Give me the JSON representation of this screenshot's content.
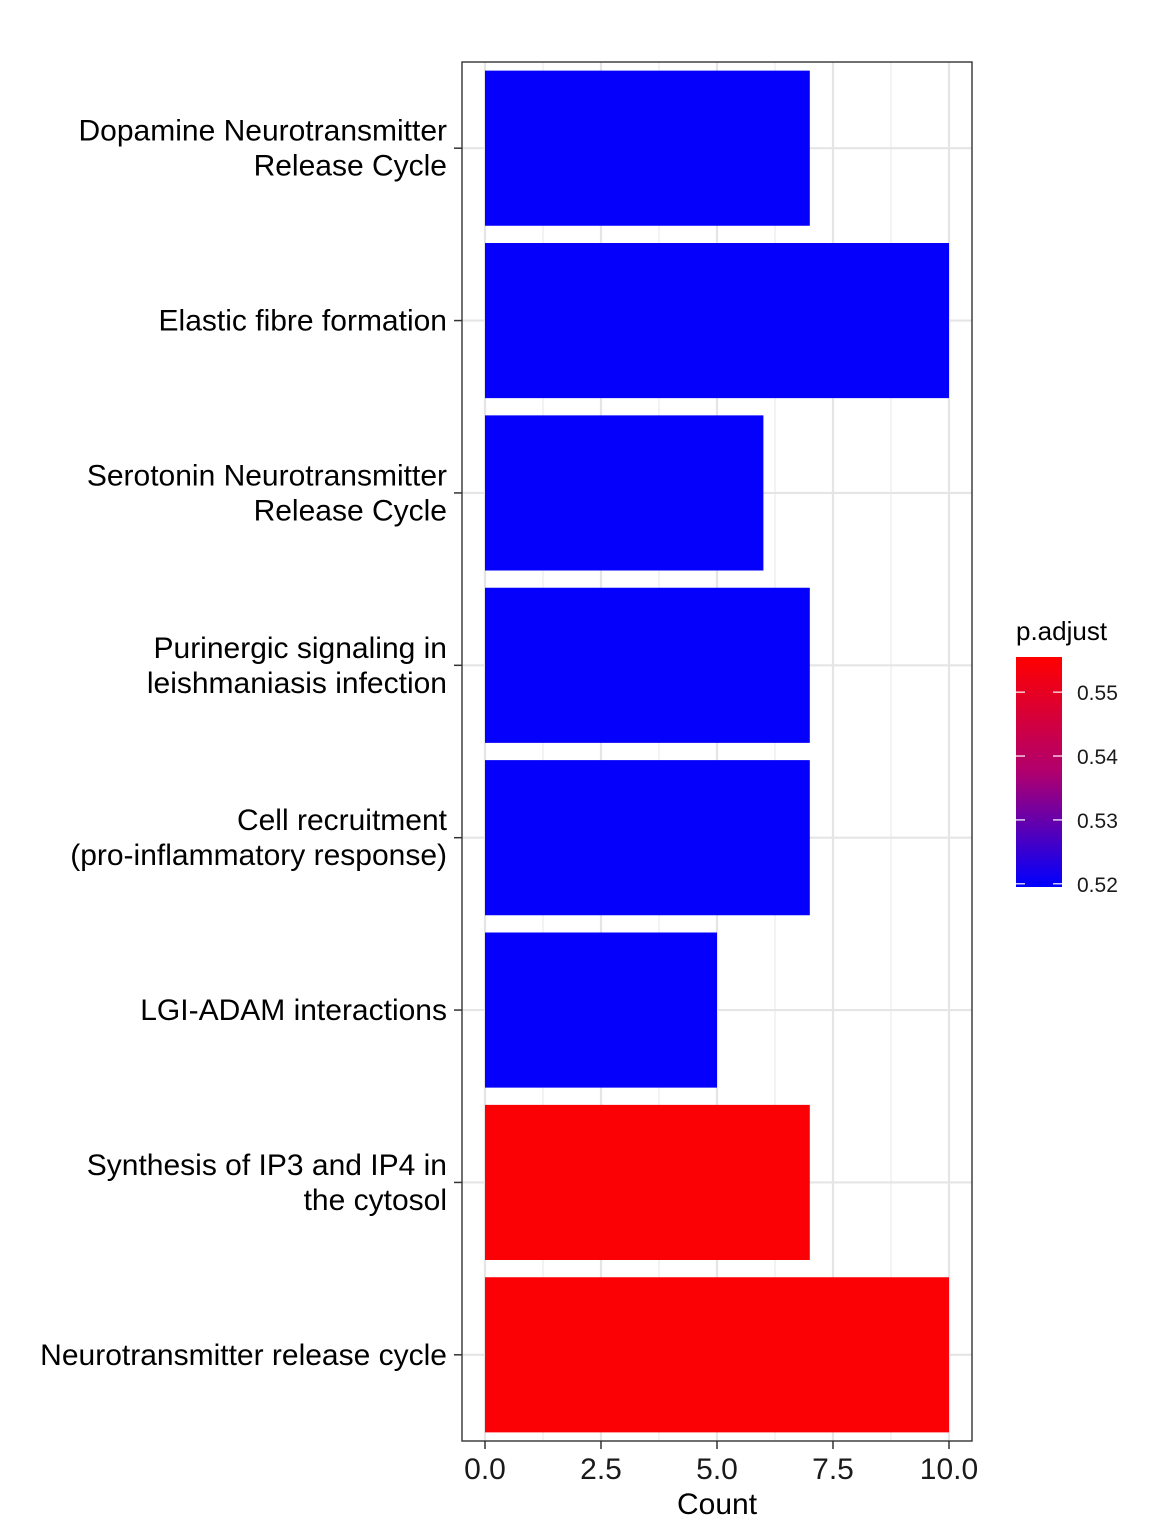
{
  "chart_data": {
    "type": "bar",
    "orientation": "horizontal",
    "categories": [
      "Dopamine Neurotransmitter\nRelease Cycle",
      "Elastic fibre formation",
      "Serotonin Neurotransmitter\nRelease Cycle",
      "Purinergic signaling in\nleishmaniasis infection",
      "Cell recruitment\n(pro-inflammatory response)",
      "LGI-ADAM interactions",
      "Synthesis of IP3 and IP4 in\nthe cytosol",
      "Neurotransmitter release cycle"
    ],
    "values": [
      7,
      10,
      6,
      7,
      7,
      5,
      7,
      10
    ],
    "p_adjust": [
      0.52,
      0.52,
      0.52,
      0.52,
      0.52,
      0.52,
      0.555,
      0.555
    ],
    "xlabel": "Count",
    "ylabel": "",
    "xlim": [
      0,
      10.5
    ],
    "x_ticks": [
      "0.0",
      "2.5",
      "5.0",
      "7.5",
      "10.0"
    ],
    "x_tick_values": [
      0,
      2.5,
      5,
      7.5,
      10
    ],
    "grid": true,
    "legend": {
      "title": "p.adjust",
      "position": "right",
      "ticks": [
        "0.55",
        "0.54",
        "0.53",
        "0.52"
      ],
      "tick_values": [
        0.55,
        0.54,
        0.53,
        0.52
      ],
      "range": [
        0.5195,
        0.5555
      ],
      "color_low": "#0000FF",
      "color_high": "#FF0000"
    }
  }
}
